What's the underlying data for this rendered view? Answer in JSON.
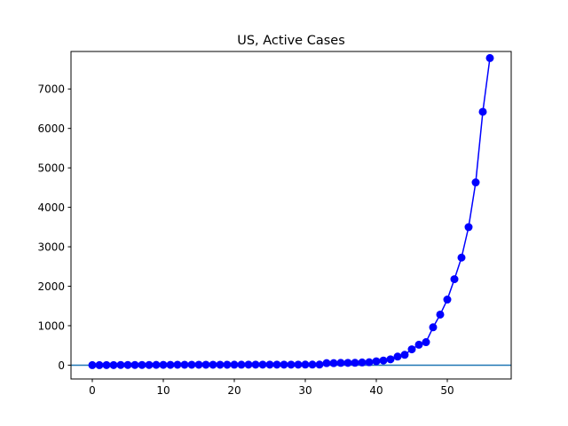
{
  "chart_data": {
    "type": "line",
    "title": "US, Active Cases",
    "xlabel": "",
    "ylabel": "",
    "xlim": [
      -3,
      59
    ],
    "ylim": [
      -350,
      7950
    ],
    "xticks": [
      0,
      10,
      20,
      30,
      40,
      50
    ],
    "yticks": [
      0,
      1000,
      2000,
      3000,
      4000,
      5000,
      6000,
      7000
    ],
    "grid": false,
    "reference_line": {
      "y": 0,
      "color": "#1f77b4"
    },
    "series": [
      {
        "color": "#0000ff",
        "marker": "circle",
        "x": [
          0,
          1,
          2,
          3,
          4,
          5,
          6,
          7,
          8,
          9,
          10,
          11,
          12,
          13,
          14,
          15,
          16,
          17,
          18,
          19,
          20,
          21,
          22,
          23,
          24,
          25,
          26,
          27,
          28,
          29,
          30,
          31,
          32,
          33,
          34,
          35,
          36,
          37,
          38,
          39,
          40,
          41,
          42,
          43,
          44,
          45,
          46,
          47,
          48,
          49,
          50,
          51,
          52,
          53,
          54,
          55,
          56
        ],
        "values": [
          1,
          1,
          2,
          2,
          5,
          5,
          5,
          5,
          5,
          7,
          8,
          8,
          11,
          11,
          11,
          11,
          11,
          11,
          11,
          11,
          12,
          12,
          13,
          13,
          13,
          13,
          13,
          13,
          13,
          13,
          15,
          15,
          15,
          51,
          51,
          57,
          58,
          60,
          68,
          74,
          98,
          118,
          149,
          217,
          262,
          402,
          518,
          583,
          959,
          1281,
          1663,
          2179,
          2726,
          3499,
          4632,
          6421,
          7783
        ]
      }
    ]
  }
}
